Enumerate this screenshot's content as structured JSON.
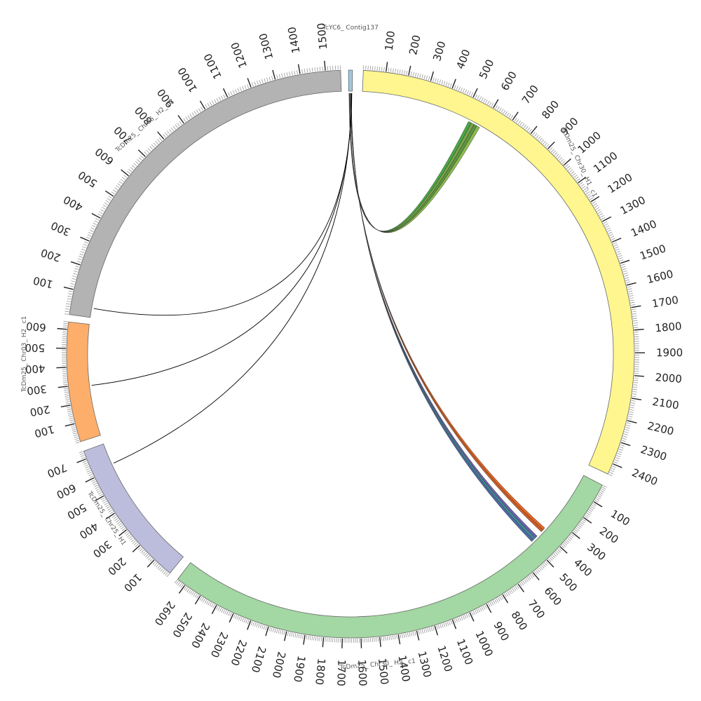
{
  "chart_data": {
    "type": "circos",
    "segments": [
      {
        "id": "contig137",
        "name": "TcYC6_ Contig137",
        "color": "#9ecae1",
        "length": 20,
        "show_ticks": false
      },
      {
        "id": "chr30h1",
        "name": "TcDm25_ Chr30_ H1_ c1",
        "color": "#fff68f",
        "length": 2450,
        "show_ticks": true
      },
      {
        "id": "chr30h2",
        "name": "TcDm25_ Chr30_ H2_ c1",
        "color": "#a3d7a3",
        "length": 2650,
        "show_ticks": true
      },
      {
        "id": "chr25h1",
        "name": "TcDm25_ Chr25_ H1",
        "color": "#bcbddc",
        "length": 740,
        "show_ticks": true
      },
      {
        "id": "chr03h2",
        "name": "TcDm25_ Chr03_ H2_ c1",
        "color": "#fdae6b",
        "length": 640,
        "show_ticks": true
      },
      {
        "id": "chr06h2",
        "name": "TcDm25_ Chr06_ H2_ c2",
        "color": "#b3b3b3",
        "length": 1560,
        "show_ticks": true
      }
    ],
    "links": [
      {
        "from": "contig137",
        "from_pos": 2,
        "to": "chr30h1",
        "to_start": 530,
        "to_end": 545,
        "color": "#33a02c"
      },
      {
        "from": "contig137",
        "from_pos": 3,
        "to": "chr30h1",
        "to_start": 545,
        "to_end": 560,
        "color": "#6a9a3a"
      },
      {
        "from": "contig137",
        "from_pos": 4,
        "to": "chr30h1",
        "to_start": 560,
        "to_end": 575,
        "color": "#4d8c2a"
      },
      {
        "from": "contig137",
        "from_pos": 5,
        "to": "chr30h1",
        "to_start": 575,
        "to_end": 590,
        "color": "#7fb53a"
      },
      {
        "from": "contig137",
        "from_pos": 9,
        "to": "chr30h2",
        "to_start": 380,
        "to_end": 395,
        "color": "#e6550d"
      },
      {
        "from": "contig137",
        "from_pos": 10,
        "to": "chr30h2",
        "to_start": 395,
        "to_end": 410,
        "color": "#c44d10"
      },
      {
        "from": "contig137",
        "from_pos": 12,
        "to": "chr30h2",
        "to_start": 445,
        "to_end": 460,
        "color": "#5b4f9e"
      },
      {
        "from": "contig137",
        "from_pos": 13,
        "to": "chr30h2",
        "to_start": 460,
        "to_end": 475,
        "color": "#2c7f8c"
      },
      {
        "from": "contig137",
        "from_pos": 14,
        "to": "chr30h2",
        "to_start": 475,
        "to_end": 490,
        "color": "#3b5aa0"
      },
      {
        "from": "contig137",
        "from_pos": 15,
        "to": "chr25h1",
        "to_start": 625,
        "to_end": 625,
        "color": "#000000"
      },
      {
        "from": "contig137",
        "from_pos": 16,
        "to": "chr03h2",
        "to_start": 290,
        "to_end": 290,
        "color": "#000000"
      },
      {
        "from": "contig137",
        "from_pos": 17,
        "to": "chr06h2",
        "to_start": 40,
        "to_end": 40,
        "color": "#000000"
      }
    ]
  }
}
